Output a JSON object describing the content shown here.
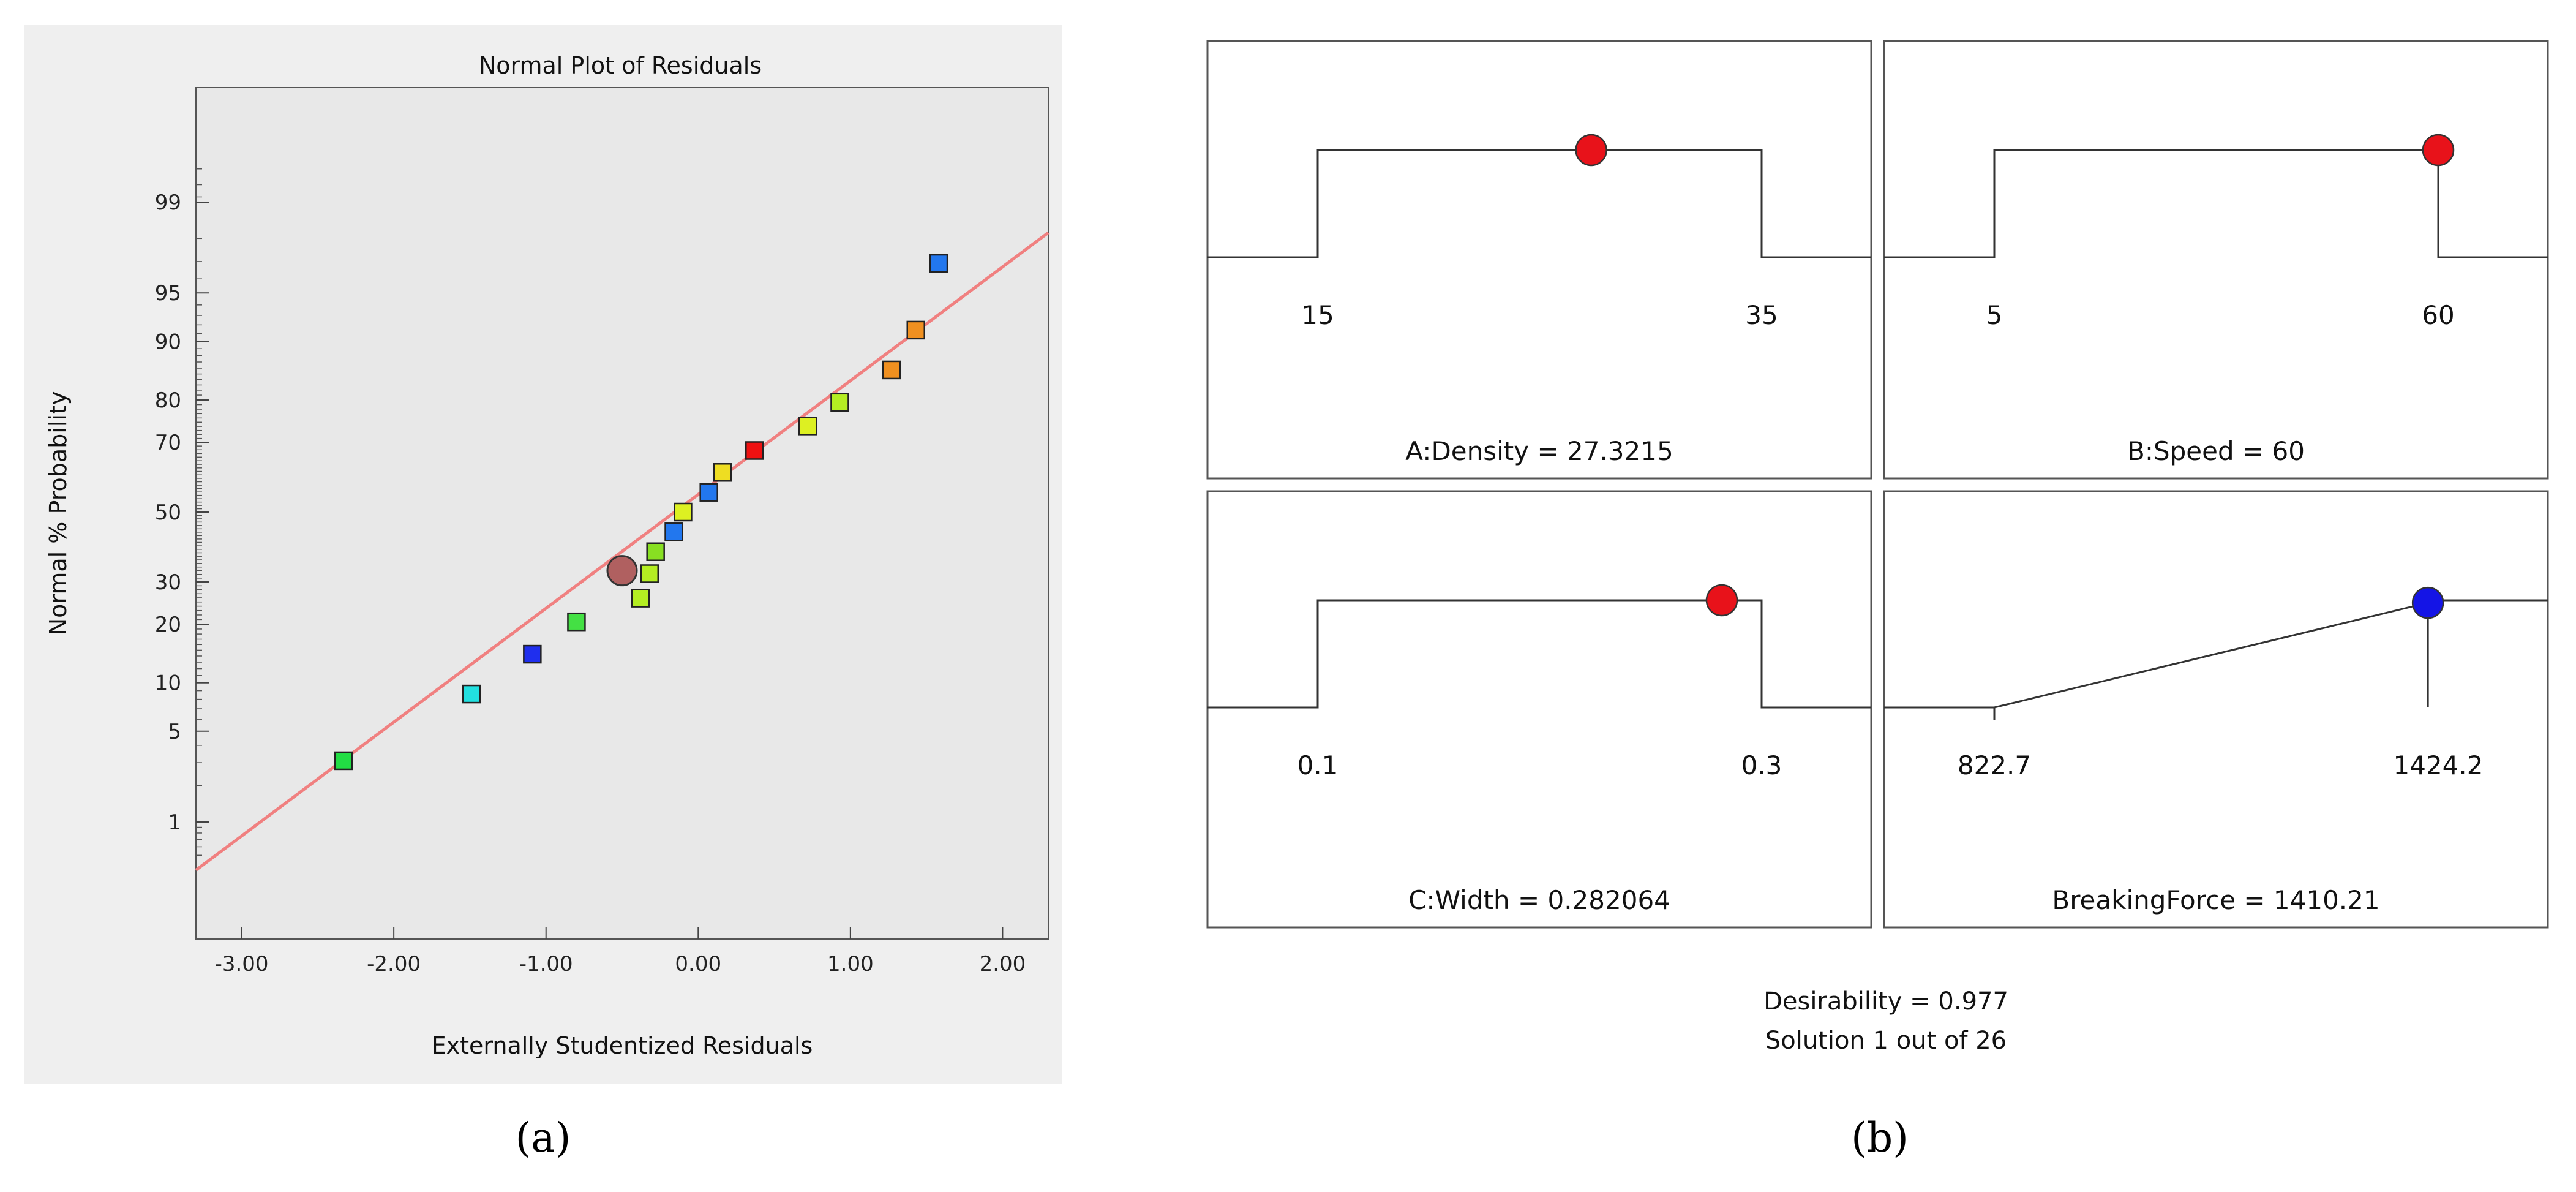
{
  "chart_data": [
    {
      "type": "scatter",
      "panel_caption": "(a)",
      "title": "Normal Plot of Residuals",
      "xlabel": "Externally Studentized Residuals",
      "ylabel": "Normal % Probability",
      "xlim": [
        -3.3,
        2.3
      ],
      "x_ticks": [
        -3.0,
        -2.0,
        -1.0,
        0.0,
        1.0,
        2.0
      ],
      "x_tick_labels": [
        "-3.00",
        "-2.00",
        "-1.00",
        "0.00",
        "1.00",
        "2.00"
      ],
      "y_ticks": [
        1,
        5,
        10,
        20,
        30,
        50,
        70,
        80,
        90,
        95,
        99
      ],
      "y_tick_labels": [
        "1",
        "5",
        "10",
        "20",
        "30",
        "50",
        "70",
        "80",
        "90",
        "95",
        "99"
      ],
      "fit_line": {
        "color": "#f08080",
        "x": [
          -3.3,
          2.3
        ],
        "y": [
          0.36,
          98.2
        ]
      },
      "points": [
        {
          "x": -2.33,
          "y": 3.1,
          "color": "#22dd44"
        },
        {
          "x": -1.49,
          "y": 8.6,
          "color": "#22e0e0"
        },
        {
          "x": -1.09,
          "y": 14.3,
          "color": "#1f2fee"
        },
        {
          "x": -0.8,
          "y": 20.5,
          "color": "#44e044"
        },
        {
          "x": -0.38,
          "y": 25.9,
          "color": "#b4ee22"
        },
        {
          "x": -0.32,
          "y": 32.2,
          "color": "#b4ee22"
        },
        {
          "x": -0.28,
          "y": 38.3,
          "color": "#88e022"
        },
        {
          "x": -0.16,
          "y": 44.1,
          "color": "#2277ee"
        },
        {
          "x": -0.1,
          "y": 50.0,
          "color": "#ddf022"
        },
        {
          "x": 0.07,
          "y": 55.9,
          "color": "#2277ee"
        },
        {
          "x": 0.16,
          "y": 61.7,
          "color": "#eedd22"
        },
        {
          "x": 0.37,
          "y": 67.8,
          "color": "#ee1111"
        },
        {
          "x": 0.72,
          "y": 74.1,
          "color": "#ddf022"
        },
        {
          "x": 0.93,
          "y": 79.5,
          "color": "#b4ee22"
        },
        {
          "x": 1.27,
          "y": 85.7,
          "color": "#f09020"
        },
        {
          "x": 1.43,
          "y": 91.4,
          "color": "#f09020"
        },
        {
          "x": 1.58,
          "y": 96.9,
          "color": "#2277ee"
        }
      ],
      "highlight": {
        "x": -0.5,
        "y": 33.0,
        "color": "#b06060"
      }
    },
    {
      "type": "desirability_ramps",
      "panel_caption": "(b)",
      "panels": [
        {
          "label": "A:Density = 27.3215",
          "low": 15,
          "high": 35,
          "low_label": "15",
          "high_label": "35",
          "value": 27.3215,
          "marker": "red",
          "shape": "range"
        },
        {
          "label": "B:Speed = 60",
          "low": 5,
          "high": 60,
          "low_label": "5",
          "high_label": "60",
          "value": 60,
          "marker": "red",
          "shape": "range"
        },
        {
          "label": "C:Width = 0.282064",
          "low": 0.1,
          "high": 0.3,
          "low_label": "0.1",
          "high_label": "0.3",
          "value": 0.282064,
          "marker": "red",
          "shape": "range"
        },
        {
          "label": "BreakingForce = 1410.21",
          "low": 822.7,
          "high": 1424.2,
          "low_label": "822.7",
          "high_label": "1424.2",
          "value": 1410.21,
          "marker": "blue",
          "shape": "maximize"
        }
      ],
      "desirability_text": "Desirability = 0.977",
      "solution_text": "Solution 1 out of 26"
    }
  ],
  "colors": {
    "plot_bg": "#efefef",
    "grid_bg": "#e8e8e8",
    "red_marker": "#e8121a",
    "blue_marker": "#1414e6"
  }
}
